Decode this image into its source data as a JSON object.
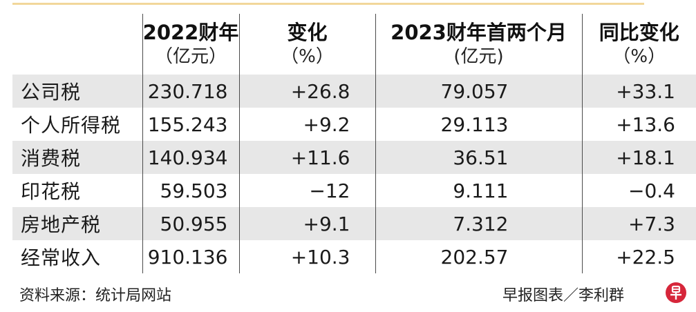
{
  "headers": [
    {
      "title": "",
      "unit": ""
    },
    {
      "title": "2022财年",
      "unit": "（亿元）"
    },
    {
      "title": "变化",
      "unit": "（%）"
    },
    {
      "title": "2023财年首两个月",
      "unit": "(亿元)"
    },
    {
      "title": "同比变化",
      "unit": "（%）"
    }
  ],
  "rows": [
    {
      "name": "公司税",
      "fy2022": "230.718",
      "change": "+26.8",
      "fy2023_first_two_months": "79.057",
      "yoy_change": "+33.1"
    },
    {
      "name": "个人所得税",
      "fy2022": "155.243",
      "change": "+9.2",
      "fy2023_first_two_months": "29.113",
      "yoy_change": "+13.6"
    },
    {
      "name": "消费税",
      "fy2022": "140.934",
      "change": "+11.6",
      "fy2023_first_two_months": "36.51",
      "yoy_change": "+18.1"
    },
    {
      "name": "印花税",
      "fy2022": "59.503",
      "change": "−12",
      "fy2023_first_two_months": "9.111",
      "yoy_change": "−0.4"
    },
    {
      "name": "房地产税",
      "fy2022": "50.955",
      "change": "+9.1",
      "fy2023_first_two_months": "7.312",
      "yoy_change": "+7.3"
    },
    {
      "name": "经常收入",
      "fy2022": "910.136",
      "change": "+10.3",
      "fy2023_first_two_months": "202.57",
      "yoy_change": "+22.5"
    }
  ],
  "footer": {
    "source": "资料来源：统计局网站",
    "credit": "早报图表／李利群"
  },
  "logo": {
    "icon": "zaobao-logo-icon",
    "color": "#d6263a"
  }
}
